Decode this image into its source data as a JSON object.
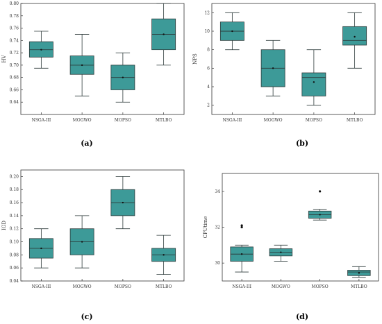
{
  "colors": {
    "box_fill": "#3d9a98",
    "box_stroke": "#2d3a3a",
    "axis": "#333333"
  },
  "chart_data": [
    {
      "type": "box",
      "panel_label": "(a)",
      "ylabel": "HV",
      "ylim": [
        0.62,
        0.8
      ],
      "yticks": [
        0.64,
        0.66,
        0.68,
        0.7,
        0.72,
        0.74,
        0.76,
        0.78,
        0.8
      ],
      "categories": [
        "NSGA-III",
        "MOGWO",
        "MOPSO",
        "MTLBO"
      ],
      "boxes": [
        {
          "whislo": 0.695,
          "q1": 0.713,
          "med": 0.725,
          "q3": 0.738,
          "whishi": 0.755,
          "mean": 0.725,
          "fliers": []
        },
        {
          "whislo": 0.65,
          "q1": 0.685,
          "med": 0.7,
          "q3": 0.715,
          "whishi": 0.75,
          "mean": 0.7,
          "fliers": []
        },
        {
          "whislo": 0.64,
          "q1": 0.66,
          "med": 0.68,
          "q3": 0.7,
          "whishi": 0.72,
          "mean": 0.68,
          "fliers": []
        },
        {
          "whislo": 0.7,
          "q1": 0.725,
          "med": 0.75,
          "q3": 0.775,
          "whishi": 0.8,
          "mean": 0.75,
          "fliers": []
        }
      ]
    },
    {
      "type": "box",
      "panel_label": "(b)",
      "ylabel": "NPS",
      "ylim": [
        1,
        13
      ],
      "yticks": [
        2,
        4,
        6,
        8,
        10,
        12
      ],
      "categories": [
        "NSGA-III",
        "MOGWO",
        "MOPSO",
        "MTLBO"
      ],
      "boxes": [
        {
          "whislo": 8.0,
          "q1": 9.0,
          "med": 10.0,
          "q3": 11.0,
          "whishi": 12.0,
          "mean": 10.0,
          "fliers": []
        },
        {
          "whislo": 3.0,
          "q1": 4.0,
          "med": 6.0,
          "q3": 8.0,
          "whishi": 9.0,
          "mean": 6.0,
          "fliers": []
        },
        {
          "whislo": 2.0,
          "q1": 3.0,
          "med": 5.0,
          "q3": 5.5,
          "whishi": 8.0,
          "mean": 4.5,
          "fliers": []
        },
        {
          "whislo": 6.0,
          "q1": 8.5,
          "med": 9.0,
          "q3": 10.5,
          "whishi": 12.0,
          "mean": 9.4,
          "fliers": []
        }
      ]
    },
    {
      "type": "box",
      "panel_label": "(c)",
      "ylabel": "IGD",
      "ylim": [
        0.04,
        0.21
      ],
      "yticks": [
        0.04,
        0.06,
        0.08,
        0.1,
        0.12,
        0.14,
        0.16,
        0.18,
        0.2
      ],
      "categories": [
        "NSGA-III",
        "MOGWO",
        "MOPSO",
        "MTLBO"
      ],
      "boxes": [
        {
          "whislo": 0.06,
          "q1": 0.075,
          "med": 0.09,
          "q3": 0.105,
          "whishi": 0.12,
          "mean": 0.09,
          "fliers": []
        },
        {
          "whislo": 0.06,
          "q1": 0.08,
          "med": 0.1,
          "q3": 0.12,
          "whishi": 0.14,
          "mean": 0.1,
          "fliers": []
        },
        {
          "whislo": 0.12,
          "q1": 0.14,
          "med": 0.16,
          "q3": 0.18,
          "whishi": 0.2,
          "mean": 0.16,
          "fliers": []
        },
        {
          "whislo": 0.05,
          "q1": 0.07,
          "med": 0.08,
          "q3": 0.09,
          "whishi": 0.11,
          "mean": 0.08,
          "fliers": []
        }
      ]
    },
    {
      "type": "box",
      "panel_label": "(d)",
      "ylabel": "CPUtime",
      "ylim": [
        29.0,
        35.0
      ],
      "yticks": [
        30,
        32,
        34
      ],
      "categories": [
        "NSGA-III",
        "MOGWO",
        "MOPSO",
        "MTLBO"
      ],
      "boxes": [
        {
          "whislo": 29.5,
          "q1": 30.1,
          "med": 30.5,
          "q3": 30.9,
          "whishi": 31.0,
          "mean": 30.5,
          "fliers": [
            32.0,
            32.1
          ]
        },
        {
          "whislo": 30.1,
          "q1": 30.4,
          "med": 30.6,
          "q3": 30.8,
          "whishi": 31.0,
          "mean": 30.6,
          "fliers": []
        },
        {
          "whislo": 32.4,
          "q1": 32.5,
          "med": 32.7,
          "q3": 32.9,
          "whishi": 33.0,
          "mean": 32.7,
          "fliers": [
            34.0
          ]
        },
        {
          "whislo": 29.2,
          "q1": 29.3,
          "med": 29.5,
          "q3": 29.6,
          "whishi": 29.8,
          "mean": 29.45,
          "fliers": []
        }
      ]
    }
  ]
}
